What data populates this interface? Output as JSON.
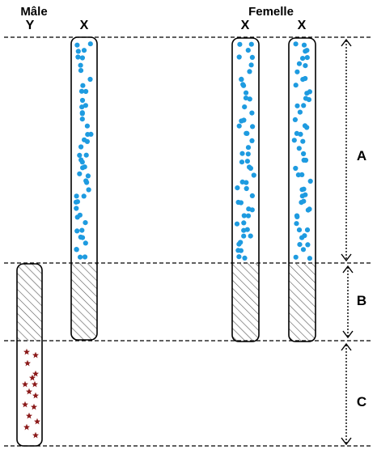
{
  "labels": {
    "male": "Mâle",
    "female": "Femelle"
  },
  "chromosomes": [
    {
      "label": "Y"
    },
    {
      "label": "X"
    },
    {
      "label": "X"
    },
    {
      "label": "X"
    }
  ],
  "regions": [
    {
      "label": "A"
    },
    {
      "label": "B"
    },
    {
      "label": "C"
    }
  ],
  "colors": {
    "dots": "#1e9be0",
    "stars": "#8b1a1a",
    "outline": "#000000",
    "hatch": "#555555"
  }
}
